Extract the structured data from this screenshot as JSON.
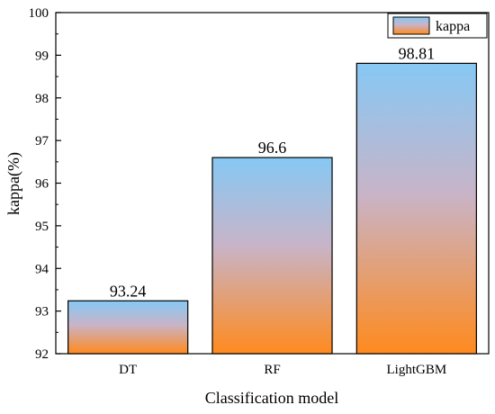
{
  "chart_data": {
    "type": "bar",
    "categories": [
      "DT",
      "RF",
      "LightGBM"
    ],
    "series": [
      {
        "name": "kappa",
        "values": [
          93.24,
          96.6,
          98.81
        ]
      }
    ],
    "data_labels": [
      "93.24",
      "96.6",
      "98.81"
    ],
    "xlabel": "Classification model",
    "ylabel": "kappa(%)",
    "ylim": [
      92,
      100
    ],
    "yticks": [
      92,
      93,
      94,
      95,
      96,
      97,
      98,
      99,
      100
    ],
    "legend_position": "top-right",
    "grid": false,
    "colors": {
      "gradient_top": "#86c8f4",
      "gradient_bottom": "#ff8a1e",
      "outline": "#000000"
    }
  }
}
